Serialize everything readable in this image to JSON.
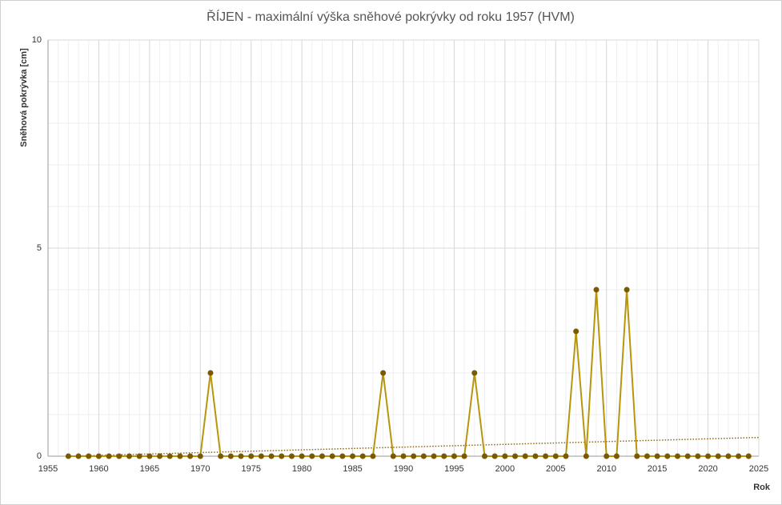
{
  "chart_data": {
    "type": "line",
    "title": "ŘÍJEN - maximální výška sněhové pokrývky od roku 1957 (HVM)",
    "y_label": "Sněhová pokrývka [cm]",
    "x_label": "Rok",
    "x": [
      1957,
      1958,
      1959,
      1960,
      1961,
      1962,
      1963,
      1964,
      1965,
      1966,
      1967,
      1968,
      1969,
      1970,
      1971,
      1972,
      1973,
      1974,
      1975,
      1976,
      1977,
      1978,
      1979,
      1980,
      1981,
      1982,
      1983,
      1984,
      1985,
      1986,
      1987,
      1988,
      1989,
      1990,
      1991,
      1992,
      1993,
      1994,
      1995,
      1996,
      1997,
      1998,
      1999,
      2000,
      2001,
      2002,
      2003,
      2004,
      2005,
      2006,
      2007,
      2008,
      2009,
      2010,
      2011,
      2012,
      2013,
      2014,
      2015,
      2016,
      2017,
      2018,
      2019,
      2020,
      2021,
      2022,
      2023,
      2024
    ],
    "series": [
      {
        "color": "#b8960c",
        "marker_color": "#7a5a00",
        "values": [
          0,
          0,
          0,
          0,
          0,
          0,
          0,
          0,
          0,
          0,
          0,
          0,
          0,
          0,
          2,
          0,
          0,
          0,
          0,
          0,
          0,
          0,
          0,
          0,
          0,
          0,
          0,
          0,
          0,
          0,
          0,
          2,
          0,
          0,
          0,
          0,
          0,
          0,
          0,
          0,
          2,
          0,
          0,
          0,
          0,
          0,
          0,
          0,
          0,
          0,
          3,
          0,
          4,
          0,
          0,
          4,
          0,
          0,
          0,
          0,
          0,
          0,
          0,
          0,
          0,
          0,
          0,
          0
        ]
      }
    ],
    "trend": {
      "x": [
        1957,
        2025
      ],
      "values": [
        0,
        0.45
      ],
      "color": "#8b6914"
    },
    "xlim": [
      1955,
      2025
    ],
    "xticks": [
      1955,
      1960,
      1965,
      1970,
      1975,
      1980,
      1985,
      1990,
      1995,
      2000,
      2005,
      2010,
      2015,
      2020,
      2025
    ],
    "ylim": [
      0,
      10
    ],
    "yticks": [
      0,
      5,
      10
    ],
    "grid": true,
    "minor_grid": true
  }
}
